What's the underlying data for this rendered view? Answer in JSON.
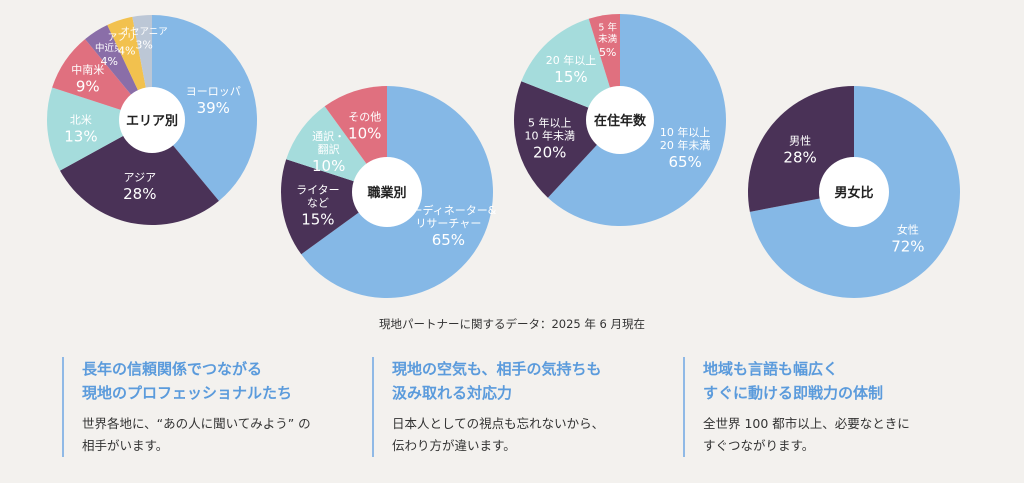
{
  "caption": "現地パートナーに関するデータ：2025 年 6 月現在",
  "features": [
    {
      "title": "長年の信頼関係でつながる\n現地のプロフェッショナルたち",
      "body": "世界各地に、“あの人に聞いてみよう” の\n相手がいます。"
    },
    {
      "title": "現地の空気も、相手の気持ちも\n汲み取れる対応力",
      "body": "日本人としての視点も忘れないから、\n伝わり方が違います。"
    },
    {
      "title": "地域も言語も幅広く\nすぐに動ける即戦力の体制",
      "body": "全世界 100 都市以上、必要なときに\nすぐつながります。"
    }
  ],
  "chart_data": [
    {
      "type": "pie",
      "title": "エリア別",
      "slices": [
        {
          "label": "ヨーロッパ",
          "value": 39,
          "color": "#85b8e6"
        },
        {
          "label": "アジア",
          "value": 28,
          "color": "#4a3257"
        },
        {
          "label": "北米",
          "value": 13,
          "color": "#a5dcdc"
        },
        {
          "label": "中南米",
          "value": 9,
          "color": "#e0707f"
        },
        {
          "label": "中近東",
          "value": 4,
          "color": "#8a6ea8"
        },
        {
          "label": "アフリカ",
          "value": 4,
          "color": "#f2c14e"
        },
        {
          "label": "オセアニア",
          "value": 3,
          "color": "#bcc7d6"
        }
      ]
    },
    {
      "type": "pie",
      "title": "職業別",
      "slices": [
        {
          "label": "コーディネーター&\nリサーチャー",
          "value": 65,
          "color": "#85b8e6"
        },
        {
          "label": "ライター\nなど",
          "value": 15,
          "color": "#4a3257"
        },
        {
          "label": "通訳・\n翻訳",
          "value": 10,
          "color": "#a5dcdc"
        },
        {
          "label": "その他",
          "value": 10,
          "color": "#e0707f"
        }
      ]
    },
    {
      "type": "pie",
      "title": "在住年数",
      "slices": [
        {
          "label": "10 年以上\n20 年未満",
          "value": 65,
          "color": "#85b8e6"
        },
        {
          "label": "5 年以上\n10 年未満",
          "value": 20,
          "color": "#4a3257"
        },
        {
          "label": "20 年以上",
          "value": 15,
          "color": "#a5dcdc"
        },
        {
          "label": "5 年\n未満",
          "value": 5,
          "color": "#e0707f"
        }
      ]
    },
    {
      "type": "pie",
      "title": "男女比",
      "slices": [
        {
          "label": "女性",
          "value": 72,
          "color": "#85b8e6"
        },
        {
          "label": "男性",
          "value": 28,
          "color": "#4a3257"
        }
      ]
    }
  ]
}
